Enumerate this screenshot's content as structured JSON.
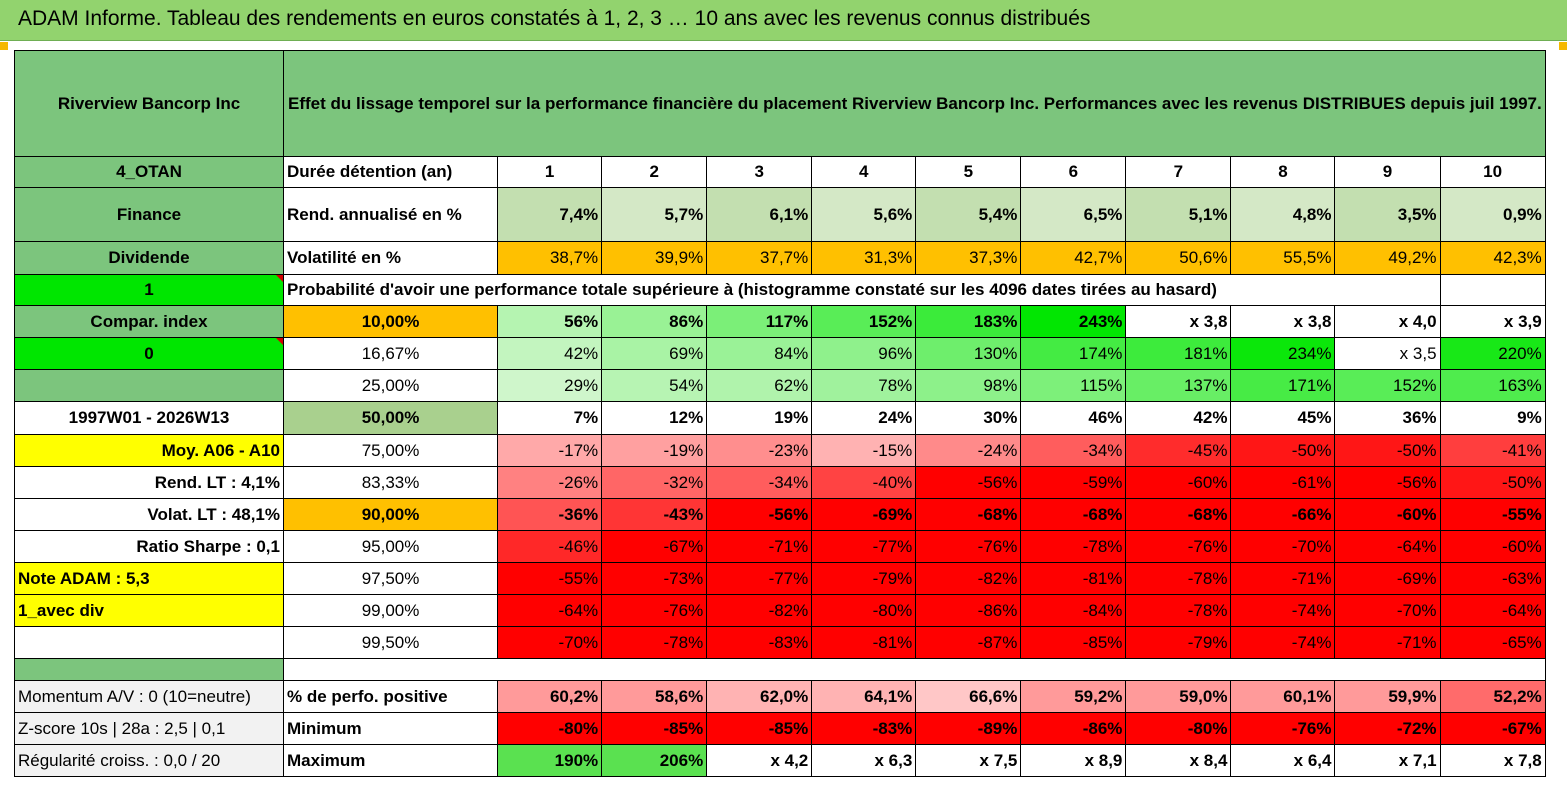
{
  "title": "ADAM Informe. Tableau des rendements en euros constatés à 1, 2, 3 … 10 ans avec les revenus connus distribués",
  "header": {
    "company": "Riverview Bancorp Inc",
    "description": "Effet du lissage temporel sur la performance financière du placement Riverview Bancorp Inc. Performances avec les revenus DISTRIBUES depuis juil 1997."
  },
  "left": {
    "code": "4_OTAN",
    "sector": "Finance",
    "type": "Dividende",
    "flag1": "1",
    "compar": "Compar. index",
    "flag0": "0",
    "period": "1997W01 - 2026W13",
    "moy": "Moy. A06 - A10",
    "rend_lt": "Rend. LT :   4,1%",
    "volat_lt": "Volat. LT :   48,1%",
    "sharpe": "Ratio Sharpe :    0,1",
    "note": "Note ADAM : 5,3",
    "avec_div": "1_avec div",
    "momentum": "Momentum A/V : 0 (10=neutre)",
    "zscore": "Z-score 10s | 28a : 2,5 | 0,1",
    "regularite": "Régularité croiss. : 0,0 / 20"
  },
  "rows": {
    "duree_label": "Durée détention (an)",
    "years": [
      "1",
      "2",
      "3",
      "4",
      "5",
      "6",
      "7",
      "8",
      "9",
      "10"
    ],
    "rend_label": "Rend. annualisé en %",
    "rend": [
      "7,4%",
      "5,7%",
      "6,1%",
      "5,6%",
      "5,4%",
      "6,5%",
      "5,1%",
      "4,8%",
      "3,5%",
      "0,9%"
    ],
    "vol_label": "Volatilité en %",
    "vol": [
      "38,7%",
      "39,9%",
      "37,7%",
      "31,3%",
      "37,3%",
      "42,7%",
      "50,6%",
      "55,5%",
      "49,2%",
      "42,3%"
    ],
    "prob_label": "Probabilité d'avoir une performance totale supérieure à (histogramme constaté sur les 4096 dates tirées au hasard)"
  },
  "quantiles": [
    {
      "pct": "10,00%",
      "values": [
        "56%",
        "86%",
        "117%",
        "152%",
        "183%",
        "243%",
        "x 3,8",
        "x 3,8",
        "x 4,0",
        "x 3,9"
      ]
    },
    {
      "pct": "16,67%",
      "values": [
        "42%",
        "69%",
        "84%",
        "96%",
        "130%",
        "174%",
        "181%",
        "234%",
        "x 3,5",
        "220%"
      ]
    },
    {
      "pct": "25,00%",
      "values": [
        "29%",
        "54%",
        "62%",
        "78%",
        "98%",
        "115%",
        "137%",
        "171%",
        "152%",
        "163%"
      ]
    },
    {
      "pct": "50,00%",
      "values": [
        "7%",
        "12%",
        "19%",
        "24%",
        "30%",
        "46%",
        "42%",
        "45%",
        "36%",
        "9%"
      ]
    },
    {
      "pct": "75,00%",
      "values": [
        "-17%",
        "-19%",
        "-23%",
        "-15%",
        "-24%",
        "-34%",
        "-45%",
        "-50%",
        "-50%",
        "-41%"
      ]
    },
    {
      "pct": "83,33%",
      "values": [
        "-26%",
        "-32%",
        "-34%",
        "-40%",
        "-56%",
        "-59%",
        "-60%",
        "-61%",
        "-56%",
        "-50%"
      ]
    },
    {
      "pct": "90,00%",
      "values": [
        "-36%",
        "-43%",
        "-56%",
        "-69%",
        "-68%",
        "-68%",
        "-68%",
        "-66%",
        "-60%",
        "-55%"
      ]
    },
    {
      "pct": "95,00%",
      "values": [
        "-46%",
        "-67%",
        "-71%",
        "-77%",
        "-76%",
        "-78%",
        "-76%",
        "-70%",
        "-64%",
        "-60%"
      ]
    },
    {
      "pct": "97,50%",
      "values": [
        "-55%",
        "-73%",
        "-77%",
        "-79%",
        "-82%",
        "-81%",
        "-78%",
        "-71%",
        "-69%",
        "-63%"
      ]
    },
    {
      "pct": "99,00%",
      "values": [
        "-64%",
        "-76%",
        "-82%",
        "-80%",
        "-86%",
        "-84%",
        "-78%",
        "-74%",
        "-70%",
        "-64%"
      ]
    },
    {
      "pct": "99,50%",
      "values": [
        "-70%",
        "-78%",
        "-83%",
        "-81%",
        "-87%",
        "-85%",
        "-79%",
        "-74%",
        "-71%",
        "-65%"
      ]
    }
  ],
  "stats": [
    {
      "label": "% de perfo. positive",
      "values": [
        "60,2%",
        "58,6%",
        "62,0%",
        "64,1%",
        "66,6%",
        "59,2%",
        "59,0%",
        "60,1%",
        "59,9%",
        "52,2%"
      ]
    },
    {
      "label": "Minimum",
      "values": [
        "-80%",
        "-85%",
        "-85%",
        "-83%",
        "-89%",
        "-86%",
        "-80%",
        "-76%",
        "-72%",
        "-67%"
      ]
    },
    {
      "label": "Maximum",
      "values": [
        "190%",
        "206%",
        "x 4,2",
        "x 6,3",
        "x 7,5",
        "x 8,9",
        "x 8,4",
        "x 6,4",
        "x 7,1",
        "x 7,8"
      ]
    }
  ],
  "colors": {
    "header_green": "#7CC57D",
    "title_green": "#92D36E",
    "volatility_orange": "#FFC000",
    "bright_green": "#00E600",
    "yellow": "#FFFF00",
    "red": "#FF0000"
  }
}
